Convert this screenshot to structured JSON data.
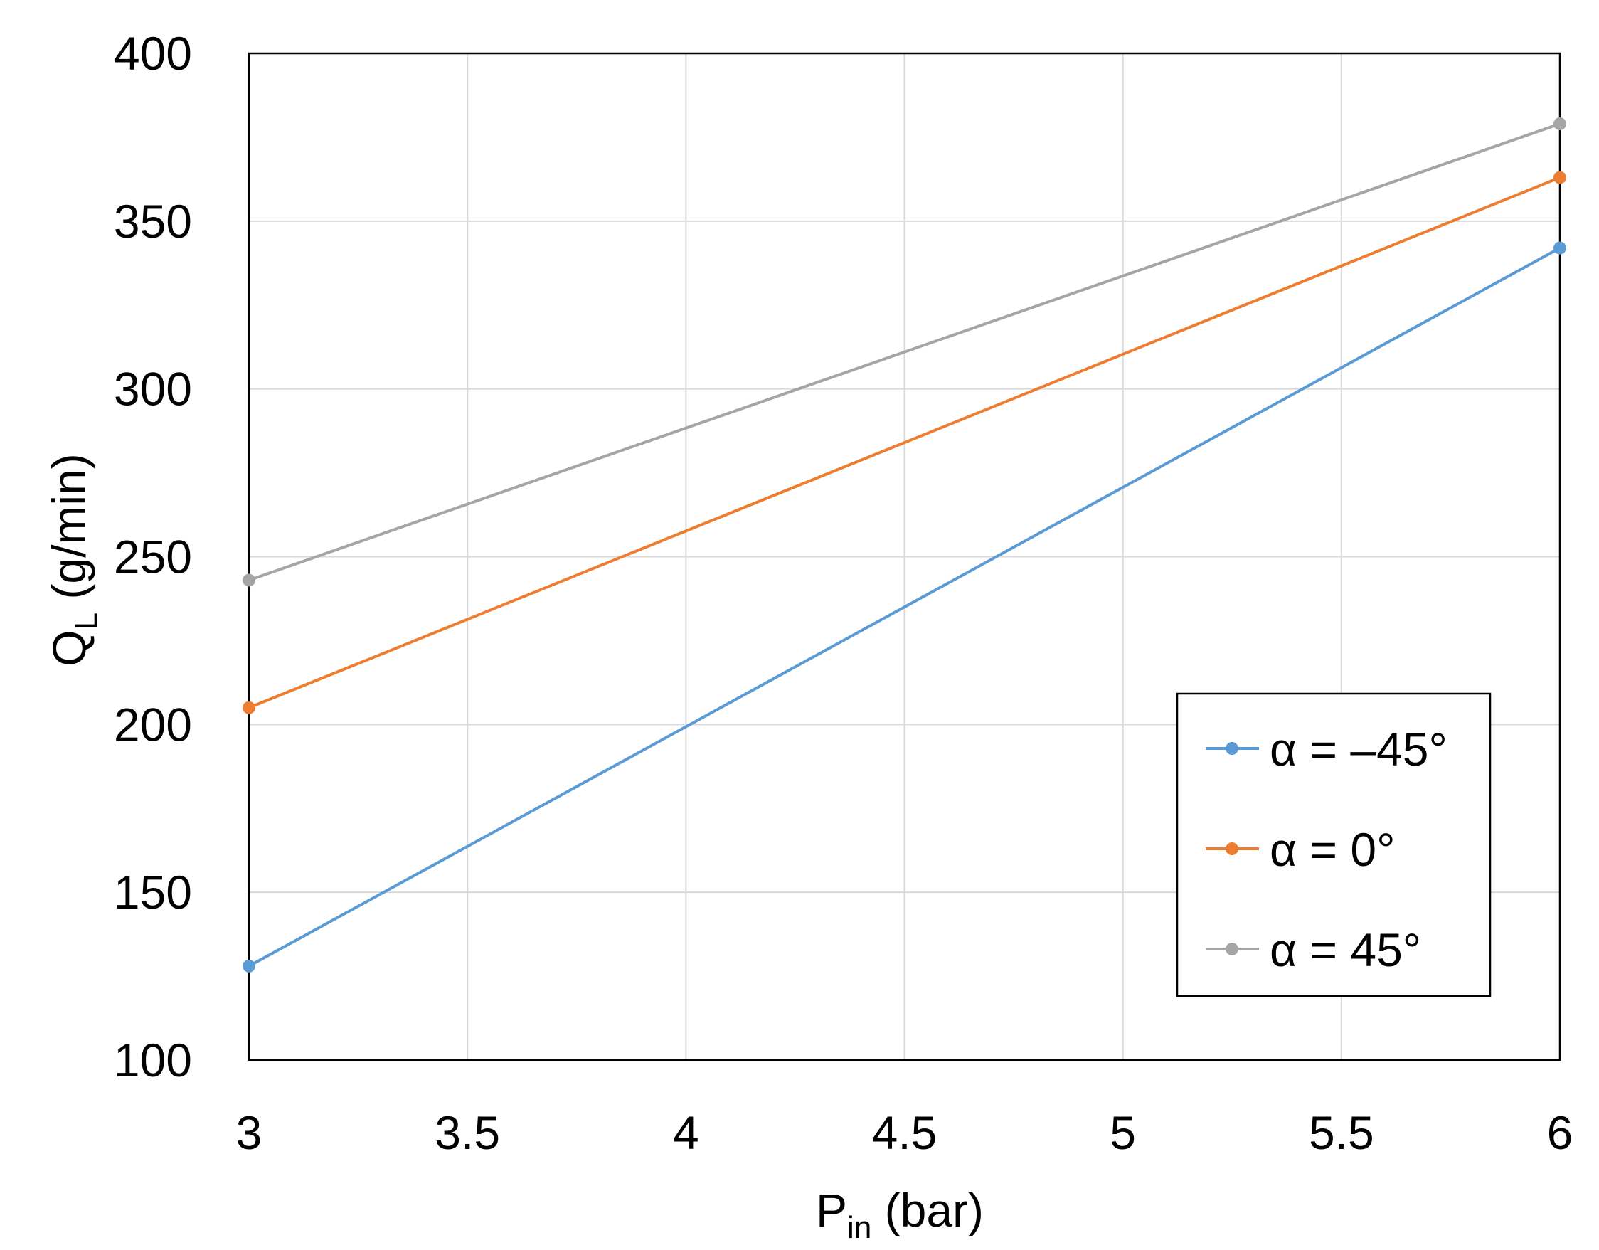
{
  "chart_data": {
    "type": "line",
    "title": "",
    "xlabel": {
      "main": "P",
      "sub": "in",
      "suffix": " (bar)"
    },
    "ylabel": {
      "main": "Q",
      "sub": "L",
      "suffix": " (g/min)"
    },
    "xlim": [
      3,
      6
    ],
    "ylim": [
      100,
      400
    ],
    "xticks": [
      3,
      3.5,
      4,
      4.5,
      5,
      5.5,
      6
    ],
    "xtick_labels": [
      "3",
      "3.5",
      "4",
      "4.5",
      "5",
      "5.5",
      "6"
    ],
    "yticks": [
      100,
      150,
      200,
      250,
      300,
      350,
      400
    ],
    "ytick_labels": [
      "100",
      "150",
      "200",
      "250",
      "300",
      "350",
      "400"
    ],
    "grid": true,
    "legend_position": "bottom-right",
    "series": [
      {
        "name": "α = –45°",
        "color": "#5b9bd5",
        "x": [
          3,
          6
        ],
        "y": [
          128,
          342
        ]
      },
      {
        "name": "α = 0°",
        "color": "#ed7d31",
        "x": [
          3,
          6
        ],
        "y": [
          205,
          363
        ]
      },
      {
        "name": "α = 45°",
        "color": "#a5a5a5",
        "x": [
          3,
          6
        ],
        "y": [
          243,
          379
        ]
      }
    ]
  }
}
